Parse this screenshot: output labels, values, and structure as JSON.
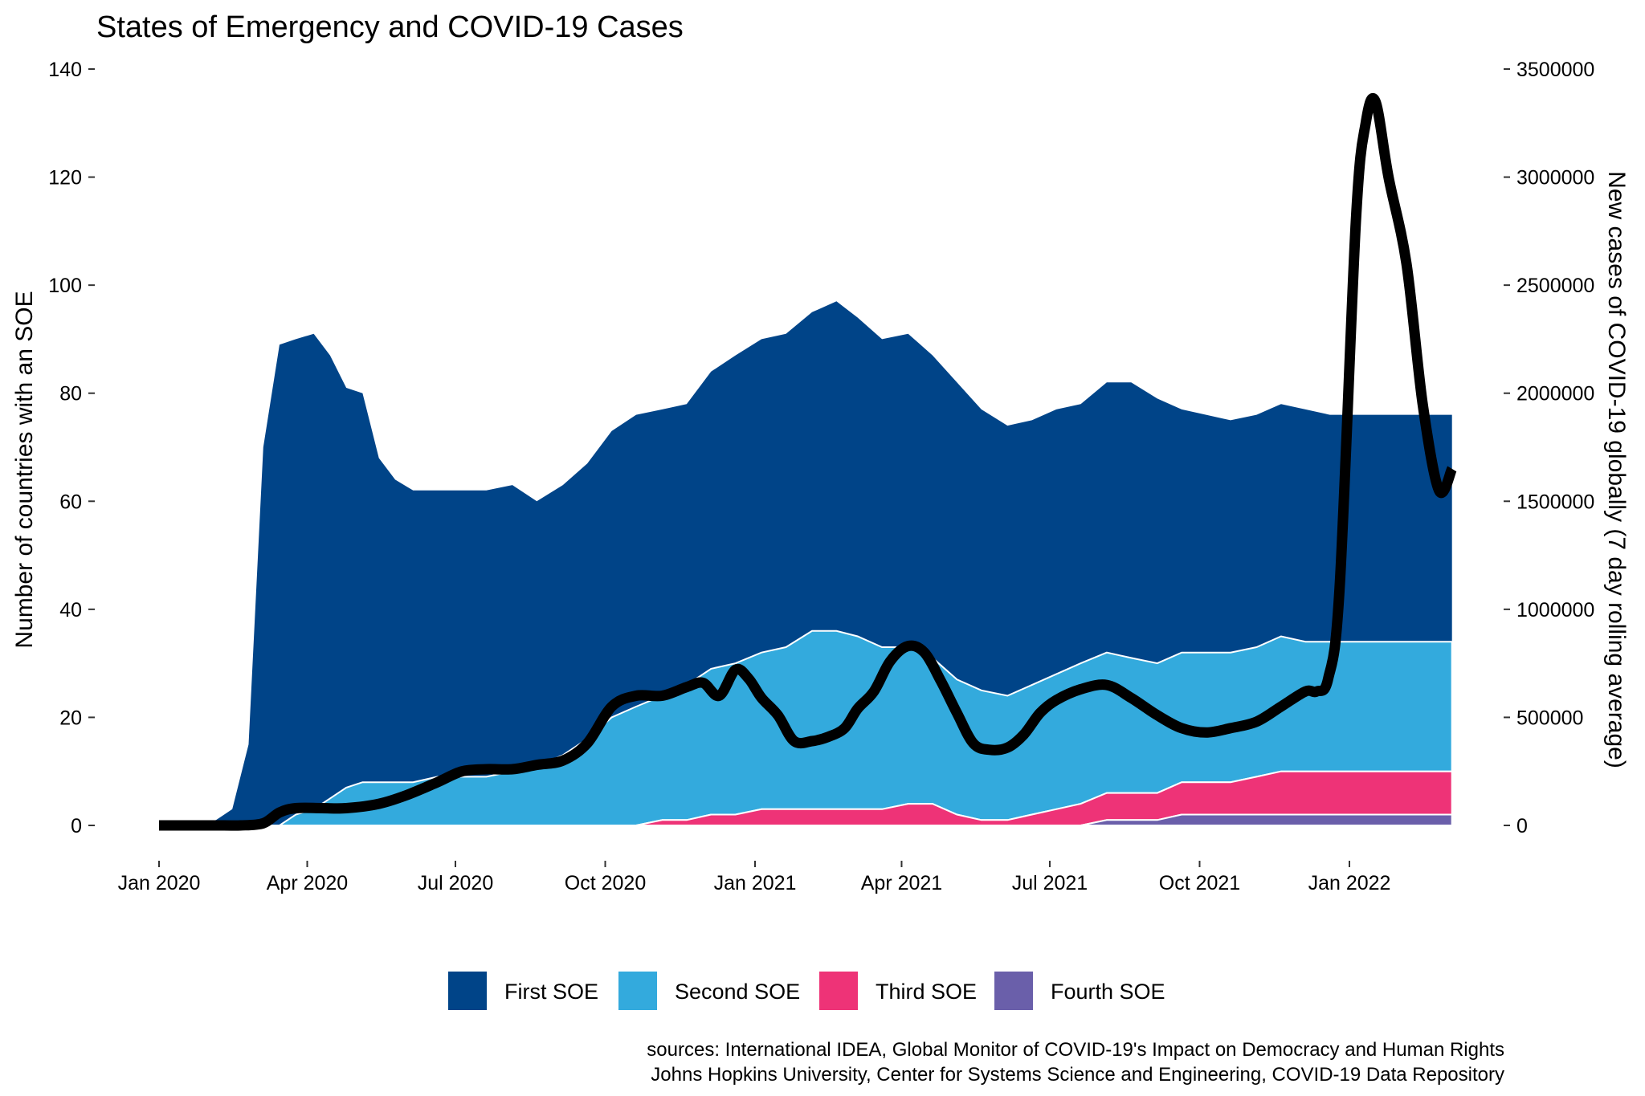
{
  "chart_data": {
    "type": "area",
    "title": "States of Emergency and COVID-19 Cases",
    "ylabel_left": "Number of countries with an SOE",
    "ylabel_right": "New cases of COVID-19 globally (7 day rolling average)",
    "xlabel": "",
    "x_ticks": [
      "Jan 2020",
      "Apr 2020",
      "Jul 2020",
      "Oct 2020",
      "Jan 2021",
      "Apr 2021",
      "Jul 2021",
      "Oct 2021",
      "Jan 2022"
    ],
    "y_left_ticks": [
      0,
      20,
      40,
      60,
      80,
      100,
      120,
      140
    ],
    "y_right_ticks": [
      "0",
      "500000",
      "1000000",
      "1500000",
      "2000000",
      "2500000",
      "3000000",
      "3500000"
    ],
    "ylim_left": [
      0,
      140
    ],
    "ylim_right": [
      0,
      3500000
    ],
    "grid": false,
    "legend_position": "bottom",
    "x": [
      "2020-01-01",
      "2020-01-20",
      "2020-02-05",
      "2020-02-15",
      "2020-02-25",
      "2020-03-05",
      "2020-03-15",
      "2020-03-25",
      "2020-04-05",
      "2020-04-15",
      "2020-04-25",
      "2020-05-05",
      "2020-05-15",
      "2020-05-25",
      "2020-06-05",
      "2020-06-20",
      "2020-07-05",
      "2020-07-20",
      "2020-08-05",
      "2020-08-20",
      "2020-09-05",
      "2020-09-20",
      "2020-10-05",
      "2020-10-20",
      "2020-11-05",
      "2020-11-20",
      "2020-12-05",
      "2020-12-20",
      "2021-01-05",
      "2021-01-20",
      "2021-02-05",
      "2021-02-20",
      "2021-03-05",
      "2021-03-20",
      "2021-04-05",
      "2021-04-20",
      "2021-05-05",
      "2021-05-20",
      "2021-06-05",
      "2021-06-20",
      "2021-07-05",
      "2021-07-20",
      "2021-08-05",
      "2021-08-20",
      "2021-09-05",
      "2021-09-20",
      "2021-10-05",
      "2021-10-20",
      "2021-11-05",
      "2021-11-20",
      "2021-12-05",
      "2021-12-20",
      "2022-01-05",
      "2022-01-20",
      "2022-02-05",
      "2022-02-20",
      "2022-03-05"
    ],
    "series": [
      {
        "name": "First SOE",
        "color": "#004488",
        "values": [
          0,
          0,
          1,
          3,
          15,
          70,
          89,
          88,
          88,
          82,
          74,
          72,
          60,
          56,
          54,
          53,
          53,
          53,
          53,
          49,
          50,
          51,
          53,
          54,
          53,
          52,
          55,
          57,
          58,
          58,
          59,
          61,
          59,
          57,
          58,
          56,
          55,
          52,
          50,
          49,
          49,
          48,
          50,
          51,
          49,
          45,
          44,
          43,
          43,
          43,
          43,
          42,
          42,
          42,
          42,
          42,
          42
        ]
      },
      {
        "name": "Second SOE",
        "color": "#33aadd",
        "values": [
          0,
          0,
          0,
          0,
          0,
          0,
          0,
          2,
          3,
          5,
          7,
          8,
          8,
          8,
          8,
          9,
          9,
          9,
          10,
          11,
          13,
          16,
          20,
          22,
          23,
          25,
          27,
          28,
          29,
          30,
          33,
          33,
          32,
          30,
          29,
          27,
          25,
          24,
          23,
          24,
          25,
          26,
          26,
          25,
          24,
          24,
          24,
          24,
          24,
          25,
          24,
          24,
          24,
          24,
          24,
          24,
          24
        ]
      },
      {
        "name": "Third SOE",
        "color": "#ee3377",
        "values": [
          0,
          0,
          0,
          0,
          0,
          0,
          0,
          0,
          0,
          0,
          0,
          0,
          0,
          0,
          0,
          0,
          0,
          0,
          0,
          0,
          0,
          0,
          0,
          0,
          1,
          1,
          2,
          2,
          3,
          3,
          3,
          3,
          3,
          3,
          4,
          4,
          2,
          1,
          1,
          2,
          3,
          4,
          5,
          5,
          5,
          6,
          6,
          6,
          7,
          8,
          8,
          8,
          8,
          8,
          8,
          8,
          8
        ]
      },
      {
        "name": "Fourth SOE",
        "color": "#6a5faa",
        "values": [
          0,
          0,
          0,
          0,
          0,
          0,
          0,
          0,
          0,
          0,
          0,
          0,
          0,
          0,
          0,
          0,
          0,
          0,
          0,
          0,
          0,
          0,
          0,
          0,
          0,
          0,
          0,
          0,
          0,
          0,
          0,
          0,
          0,
          0,
          0,
          0,
          0,
          0,
          0,
          0,
          0,
          0,
          1,
          1,
          1,
          2,
          2,
          2,
          2,
          2,
          2,
          2,
          2,
          2,
          2,
          2,
          2
        ]
      }
    ],
    "line_series": {
      "name": "New cases of COVID-19 globally (7 day rolling average)",
      "axis": "right",
      "color": "#000000",
      "x": [
        "2020-01-01",
        "2020-01-20",
        "2020-02-10",
        "2020-02-20",
        "2020-03-05",
        "2020-03-15",
        "2020-03-25",
        "2020-04-10",
        "2020-04-25",
        "2020-05-15",
        "2020-06-01",
        "2020-06-20",
        "2020-07-05",
        "2020-07-20",
        "2020-08-05",
        "2020-08-20",
        "2020-09-05",
        "2020-09-20",
        "2020-10-05",
        "2020-10-20",
        "2020-11-05",
        "2020-11-20",
        "2020-11-30",
        "2020-12-10",
        "2020-12-20",
        "2020-12-28",
        "2021-01-05",
        "2021-01-15",
        "2021-01-25",
        "2021-02-05",
        "2021-02-15",
        "2021-02-25",
        "2021-03-05",
        "2021-03-15",
        "2021-03-25",
        "2021-04-05",
        "2021-04-15",
        "2021-04-25",
        "2021-05-05",
        "2021-05-15",
        "2021-05-25",
        "2021-06-05",
        "2021-06-15",
        "2021-06-25",
        "2021-07-05",
        "2021-07-20",
        "2021-08-05",
        "2021-08-20",
        "2021-09-05",
        "2021-09-20",
        "2021-10-05",
        "2021-10-20",
        "2021-11-05",
        "2021-11-20",
        "2021-12-05",
        "2021-12-12",
        "2021-12-19",
        "2021-12-26",
        "2022-01-05",
        "2022-01-11",
        "2022-01-17",
        "2022-01-25",
        "2022-02-05",
        "2022-02-15",
        "2022-02-25",
        "2022-03-05"
      ],
      "values": [
        0,
        0,
        0,
        0,
        10000,
        60000,
        80000,
        80000,
        80000,
        100000,
        140000,
        200000,
        250000,
        260000,
        260000,
        280000,
        300000,
        380000,
        550000,
        600000,
        600000,
        640000,
        660000,
        600000,
        720000,
        680000,
        590000,
        510000,
        390000,
        390000,
        410000,
        450000,
        540000,
        620000,
        760000,
        830000,
        800000,
        670000,
        520000,
        380000,
        350000,
        360000,
        420000,
        520000,
        580000,
        630000,
        650000,
        590000,
        510000,
        450000,
        430000,
        450000,
        480000,
        550000,
        620000,
        620000,
        680000,
        1100000,
        2800000,
        3250000,
        3350000,
        3000000,
        2600000,
        1950000,
        1550000,
        1650000
      ]
    },
    "caption": [
      "sources: International IDEA, Global Monitor of COVID-19's Impact on Democracy and Human Rights",
      "Johns Hopkins University, Center for Systems Science and Engineering, COVID-19 Data Repository"
    ]
  }
}
